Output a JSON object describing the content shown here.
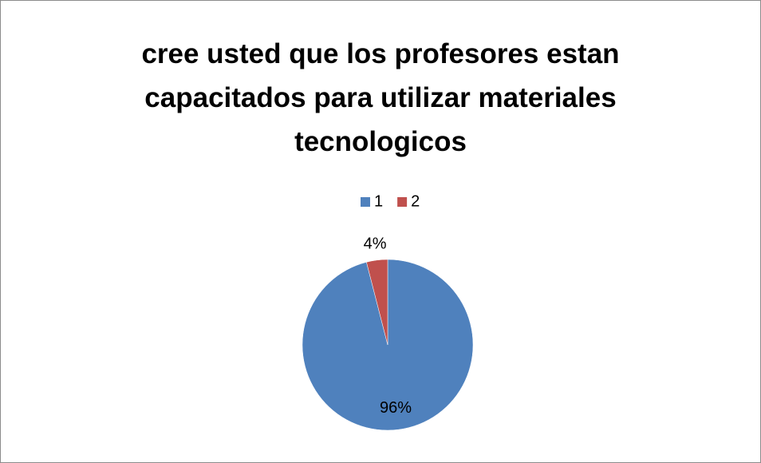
{
  "chart_data": {
    "type": "pie",
    "title": "cree usted que los profesores estan capacitados para utilizar materiales tecnologicos",
    "categories": [
      "1",
      "2"
    ],
    "values": [
      96,
      4
    ],
    "value_labels": [
      "96%",
      "4%"
    ],
    "colors": [
      "#4f81bd",
      "#c0504d"
    ],
    "legend": "top"
  }
}
